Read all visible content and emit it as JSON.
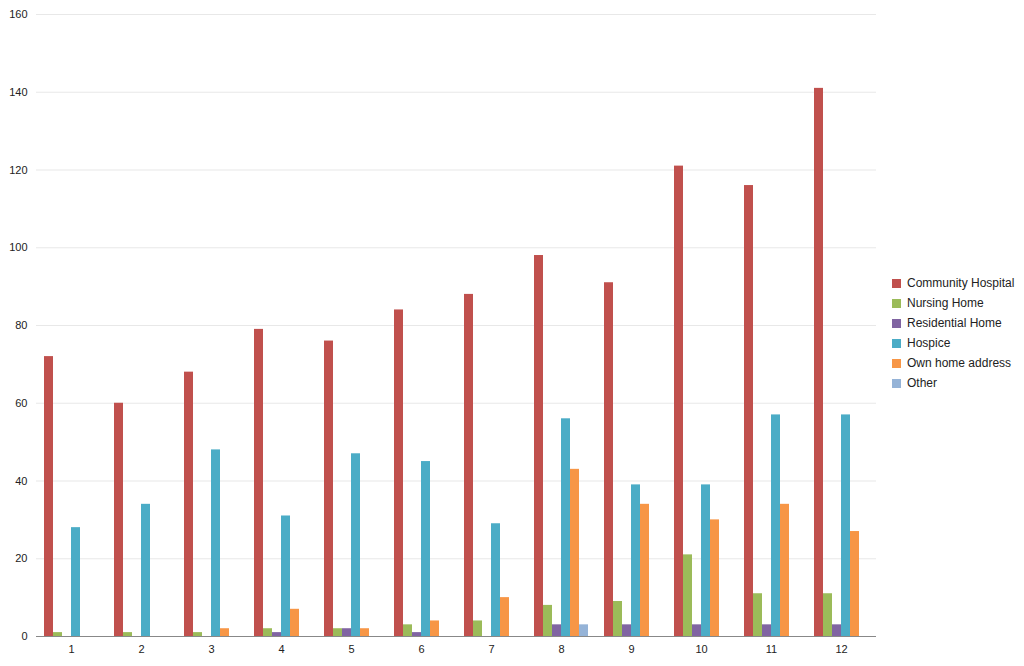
{
  "chart_data": {
    "type": "bar",
    "categories": [
      "1",
      "2",
      "3",
      "4",
      "5",
      "6",
      "7",
      "8",
      "9",
      "10",
      "11",
      "12"
    ],
    "series": [
      {
        "name": "Community Hospital",
        "color": "#c0504d",
        "values": [
          72,
          60,
          68,
          79,
          76,
          84,
          88,
          98,
          91,
          121,
          116,
          141
        ]
      },
      {
        "name": "Nursing Home",
        "color": "#9bbb59",
        "values": [
          1,
          1,
          1,
          2,
          2,
          3,
          4,
          8,
          9,
          21,
          11,
          11
        ]
      },
      {
        "name": "Residential Home",
        "color": "#8064a2",
        "values": [
          0,
          0,
          0,
          1,
          2,
          1,
          0,
          3,
          3,
          3,
          3,
          3
        ]
      },
      {
        "name": "Hospice",
        "color": "#4bacc6",
        "values": [
          28,
          34,
          48,
          31,
          47,
          45,
          29,
          56,
          39,
          39,
          57,
          57
        ]
      },
      {
        "name": "Own home address",
        "color": "#f79646",
        "values": [
          0,
          0,
          2,
          7,
          2,
          4,
          10,
          43,
          34,
          30,
          34,
          27
        ]
      },
      {
        "name": "Other",
        "color": "#95b3d7",
        "values": [
          0,
          0,
          0,
          0,
          0,
          0,
          0,
          3,
          0,
          0,
          0,
          0
        ]
      }
    ],
    "ylim": [
      0,
      160
    ],
    "yticks": [
      0,
      20,
      40,
      60,
      80,
      100,
      120,
      140,
      160
    ],
    "grid": true,
    "legend": "right"
  }
}
